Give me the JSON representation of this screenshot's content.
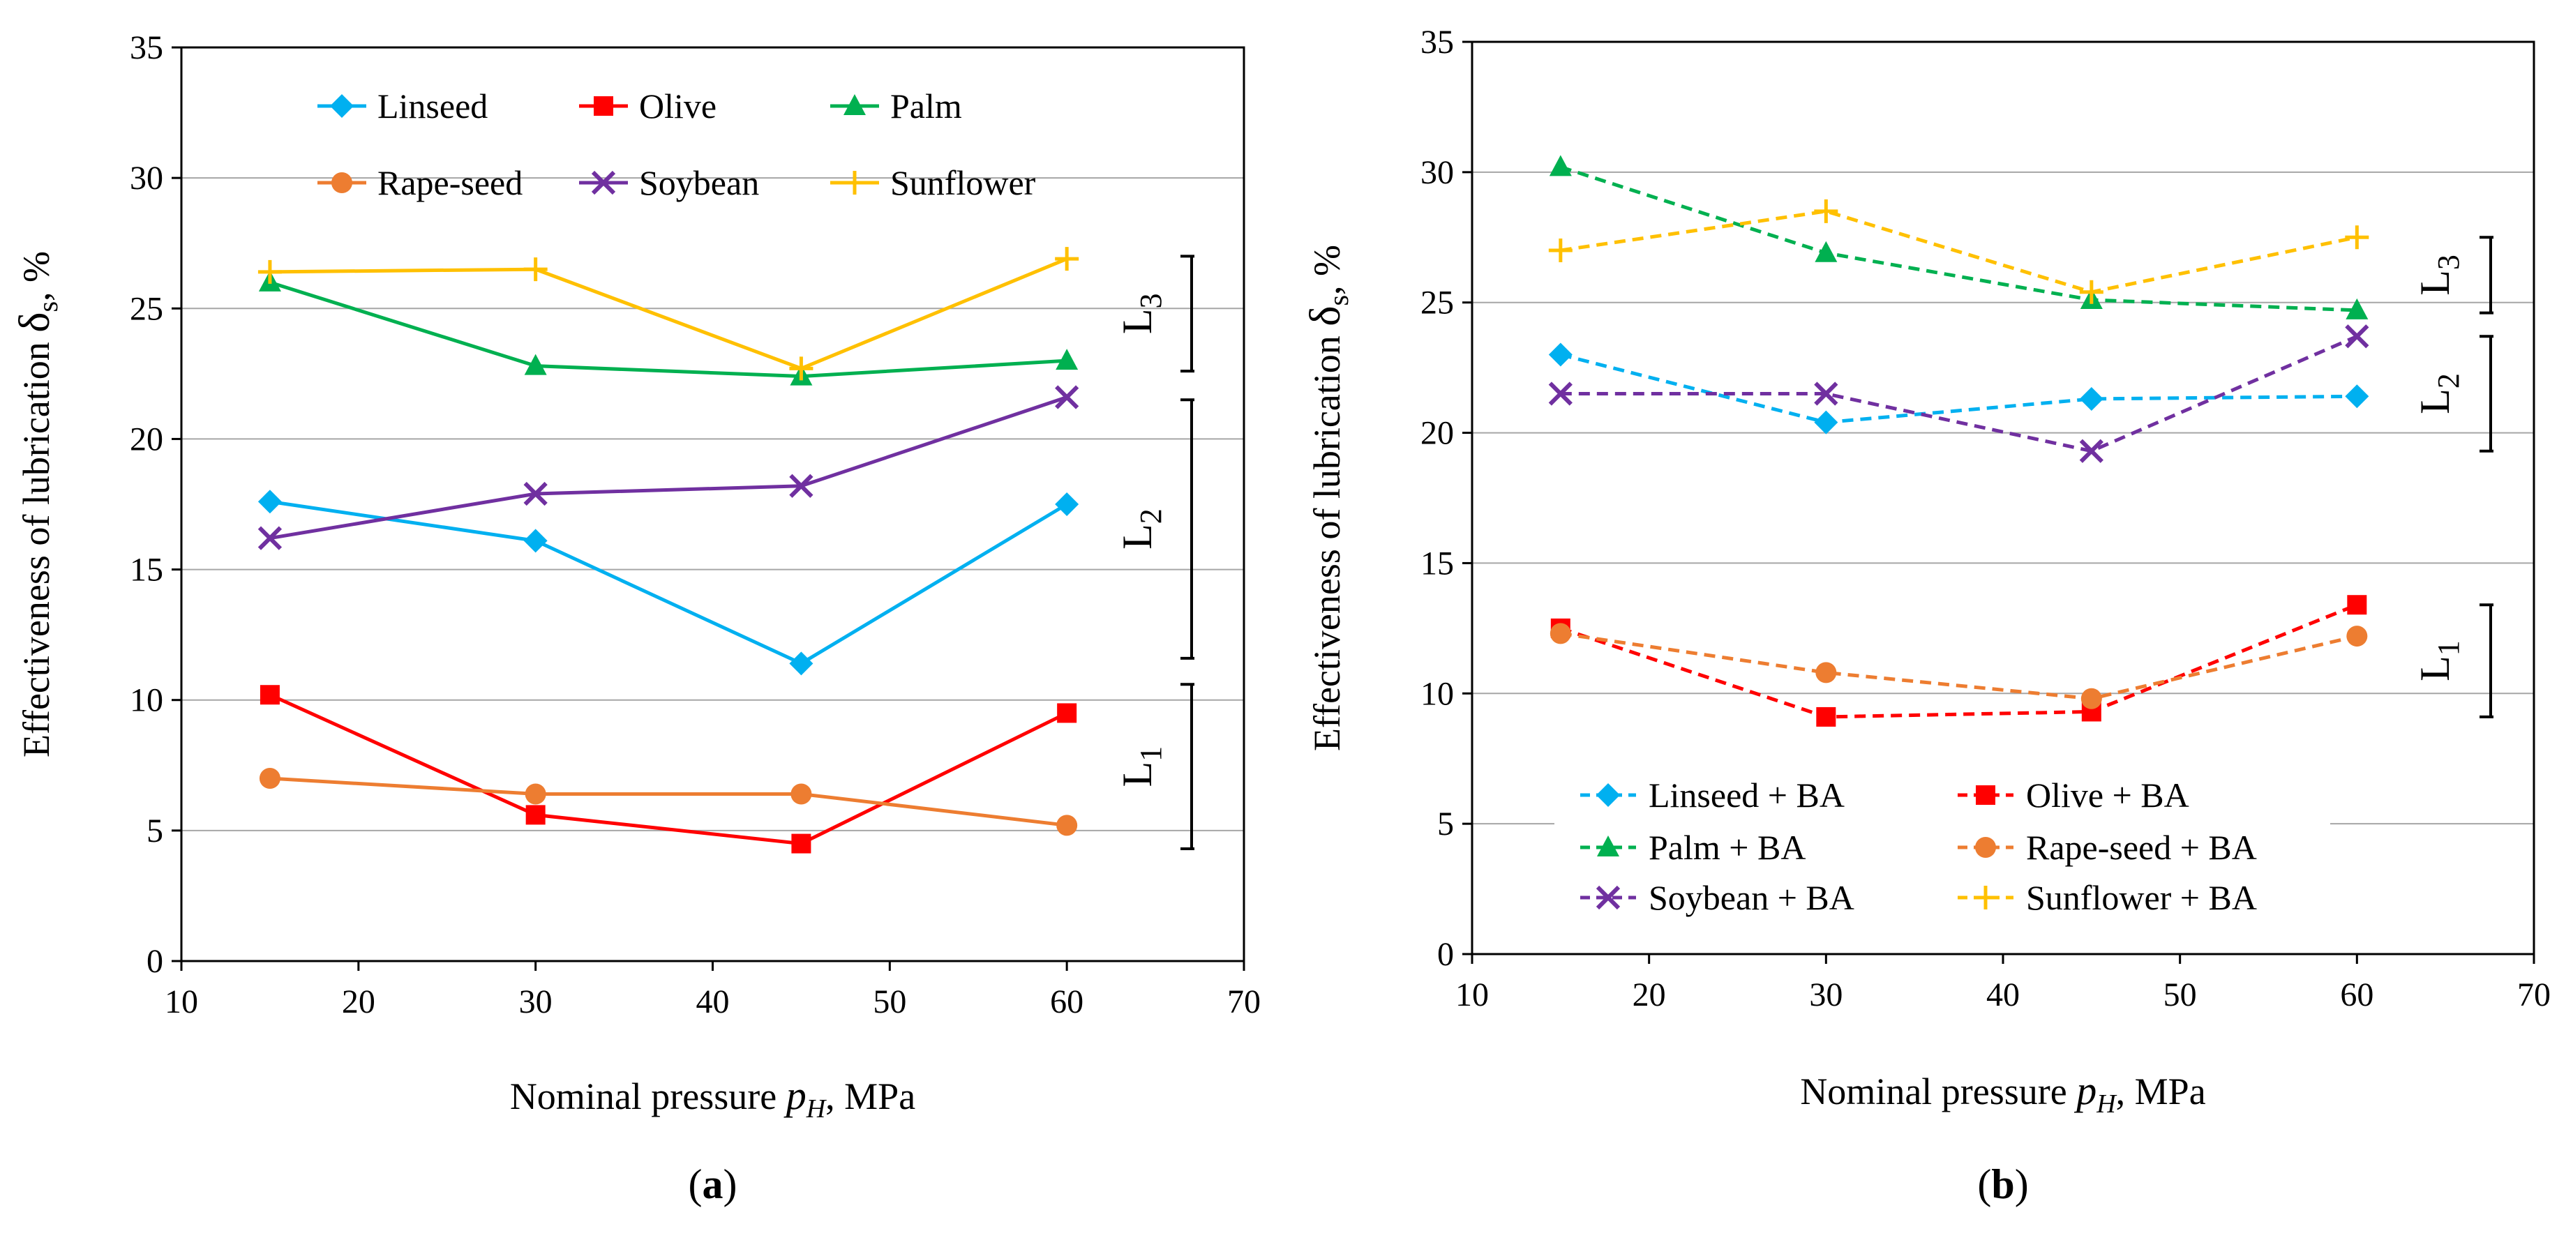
{
  "figure": {
    "x_axis_title": "Nominal pressure",
    "x_axis_var": "p",
    "x_axis_var_sub": "H",
    "x_axis_unit": ", MPa",
    "y_axis_title": "Effectiveness of lubrication",
    "y_axis_var": "δ",
    "y_axis_var_sub": "s",
    "y_axis_unit": ", %"
  },
  "regions_a": [
    {
      "label": "L",
      "sub": "1",
      "from": 4.3,
      "to": 10.6
    },
    {
      "label": "L",
      "sub": "2",
      "from": 11.6,
      "to": 21.5
    },
    {
      "label": "L",
      "sub": "3",
      "from": 22.6,
      "to": 27.0
    }
  ],
  "regions_b": [
    {
      "label": "L",
      "sub": "1",
      "from": 9.1,
      "to": 13.4
    },
    {
      "label": "L",
      "sub": "2",
      "from": 19.3,
      "to": 23.7
    },
    {
      "label": "L",
      "sub": "3",
      "from": 24.6,
      "to": 27.5
    }
  ],
  "chart_data": [
    {
      "type": "line",
      "panel_label": "(a)",
      "panel_letter": "a",
      "xlabel": "Nominal pressure pH, MPa",
      "ylabel": "Effectiveness of lubrication δs, %",
      "xlim": [
        10,
        70
      ],
      "ylim": [
        0,
        35
      ],
      "xticks": [
        10,
        20,
        30,
        40,
        50,
        60,
        70
      ],
      "yticks": [
        0,
        5,
        10,
        15,
        20,
        25,
        30,
        35
      ],
      "grid": true,
      "legend_location": "top",
      "x": [
        15,
        30,
        45,
        60
      ],
      "series": [
        {
          "name": "Linseed",
          "color": "#00B0F0",
          "marker": "diamond",
          "dash": "solid",
          "values": [
            17.6,
            16.1,
            11.4,
            17.5
          ]
        },
        {
          "name": "Olive",
          "color": "#FF0000",
          "marker": "square",
          "dash": "solid",
          "values": [
            10.2,
            5.6,
            4.5,
            9.5
          ]
        },
        {
          "name": "Palm",
          "color": "#00B050",
          "marker": "triangle",
          "dash": "solid",
          "values": [
            26.0,
            22.8,
            22.4,
            23.0
          ]
        },
        {
          "name": "Rape-seed",
          "color": "#ED7D31",
          "marker": "circle",
          "dash": "solid",
          "values": [
            7.0,
            6.4,
            6.4,
            5.2
          ]
        },
        {
          "name": "Soybean",
          "color": "#7030A0",
          "marker": "x",
          "dash": "solid",
          "values": [
            16.2,
            17.9,
            18.2,
            21.6
          ]
        },
        {
          "name": "Sunflower",
          "color": "#FFC000",
          "marker": "plus",
          "dash": "solid",
          "values": [
            26.4,
            26.5,
            22.7,
            26.9
          ]
        }
      ]
    },
    {
      "type": "line",
      "panel_label": "(b)",
      "panel_letter": "b",
      "xlabel": "Nominal pressure pH, MPa",
      "ylabel": "Effectiveness of lubrication δs, %",
      "xlim": [
        10,
        70
      ],
      "ylim": [
        0,
        35
      ],
      "xticks": [
        10,
        20,
        30,
        40,
        50,
        60,
        70
      ],
      "yticks": [
        0,
        5,
        10,
        15,
        20,
        25,
        30,
        35
      ],
      "grid": true,
      "legend_location": "bottom",
      "x": [
        15,
        30,
        45,
        60
      ],
      "series": [
        {
          "name": "Linseed + BA",
          "color": "#00B0F0",
          "marker": "diamond",
          "dash": "dashed",
          "values": [
            23.0,
            20.4,
            21.3,
            21.4
          ]
        },
        {
          "name": "Olive + BA",
          "color": "#FF0000",
          "marker": "square",
          "dash": "dashed",
          "values": [
            12.5,
            9.1,
            9.3,
            13.4
          ]
        },
        {
          "name": "Palm + BA",
          "color": "#00B050",
          "marker": "triangle",
          "dash": "dashed",
          "values": [
            30.2,
            26.9,
            25.1,
            24.7
          ]
        },
        {
          "name": "Rape-seed + BA",
          "color": "#ED7D31",
          "marker": "circle",
          "dash": "dashed",
          "values": [
            12.3,
            10.8,
            9.8,
            12.2
          ]
        },
        {
          "name": "Soybean + BA",
          "color": "#7030A0",
          "marker": "x",
          "dash": "dashed",
          "values": [
            21.5,
            21.5,
            19.3,
            23.7
          ]
        },
        {
          "name": "Sunflower + BA",
          "color": "#FFC000",
          "marker": "plus",
          "dash": "dashed",
          "values": [
            27.0,
            28.5,
            25.4,
            27.5
          ]
        }
      ]
    }
  ]
}
